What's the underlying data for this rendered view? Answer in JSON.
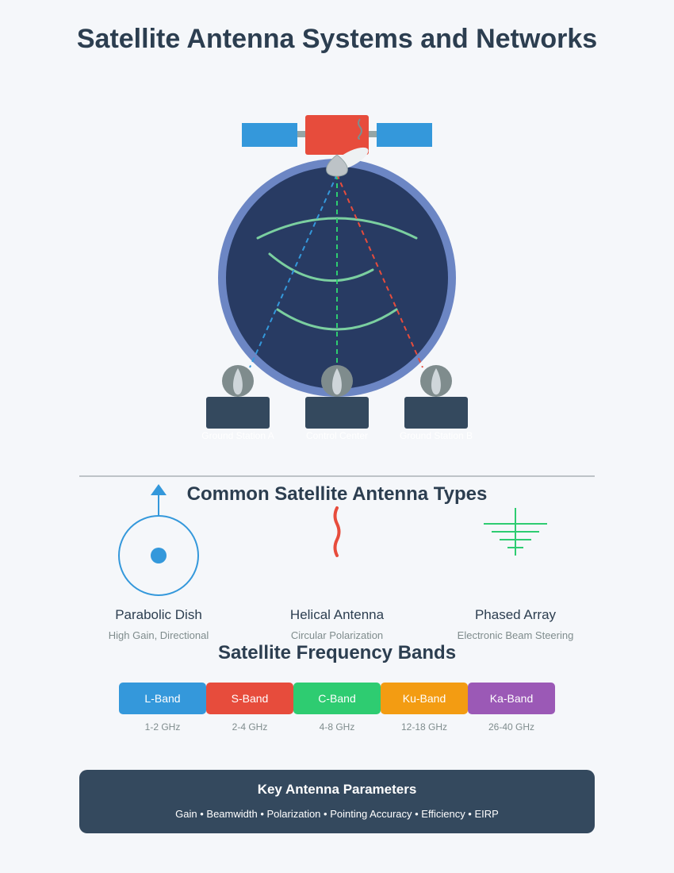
{
  "title": "Satellite Antenna Systems and Networks",
  "network": {
    "stations": [
      {
        "label": "Ground Station A",
        "beam_color": "#3498db"
      },
      {
        "label": "Control Center",
        "beam_color": "#2ecc71"
      },
      {
        "label": "Ground Station B",
        "beam_color": "#e74c3c"
      }
    ]
  },
  "antenna_types": {
    "heading": "Common Satellite Antenna Types",
    "items": [
      {
        "name": "Parabolic Dish",
        "desc": "High Gain, Directional",
        "color": "#3498db",
        "icon": "parabolic-dish-icon"
      },
      {
        "name": "Helical Antenna",
        "desc": "Circular Polarization",
        "color": "#e74c3c",
        "icon": "helix-icon"
      },
      {
        "name": "Phased Array",
        "desc": "Electronic Beam Steering",
        "color": "#2ecc71",
        "icon": "array-icon"
      }
    ]
  },
  "bands": {
    "heading": "Satellite Frequency Bands",
    "items": [
      {
        "name": "L-Band",
        "range": "1-2 GHz",
        "color": "#3498db"
      },
      {
        "name": "S-Band",
        "range": "2-4 GHz",
        "color": "#e74c3c"
      },
      {
        "name": "C-Band",
        "range": "4-8 GHz",
        "color": "#2ecc71"
      },
      {
        "name": "Ku-Band",
        "range": "12-18 GHz",
        "color": "#f39c12"
      },
      {
        "name": "Ka-Band",
        "range": "26-40 GHz",
        "color": "#9b59b6"
      }
    ]
  },
  "parameters": {
    "heading": "Key Antenna Parameters",
    "list": "Gain • Beamwidth • Polarization • Pointing Accuracy • Efficiency • EIRP"
  }
}
